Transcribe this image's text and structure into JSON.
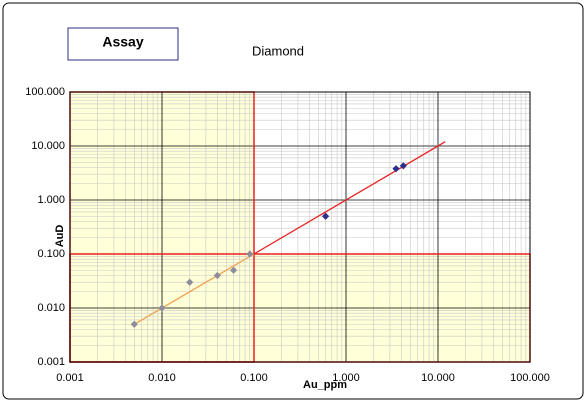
{
  "chart_data": {
    "type": "scatter",
    "label_box": "Assay",
    "title": "Diamond",
    "x_label": "Au_ppm",
    "y_label": "AuD",
    "log_x": true,
    "log_y": true,
    "grid": true,
    "minor_grid": true,
    "xlim": [
      0.001,
      100
    ],
    "ylim": [
      0.001,
      100
    ],
    "xticks": [
      {
        "value": 0.001,
        "label": "0.001"
      },
      {
        "value": 0.01,
        "label": "0.010"
      },
      {
        "value": 0.1,
        "label": "0.100"
      },
      {
        "value": 1,
        "label": "1.000"
      },
      {
        "value": 10,
        "label": "10.000"
      },
      {
        "value": 100,
        "label": "100.000"
      }
    ],
    "yticks": [
      {
        "value": 0.001,
        "label": "0.001"
      },
      {
        "value": 0.01,
        "label": "0.010"
      },
      {
        "value": 0.1,
        "label": "0.100"
      },
      {
        "value": 1,
        "label": "1.000"
      },
      {
        "value": 10,
        "label": "10.000"
      },
      {
        "value": 100,
        "label": "100.000"
      }
    ],
    "x_threshold": 0.1,
    "y_threshold": 0.1,
    "series": [
      {
        "color": "#8c8c9c",
        "x": [
          0.005,
          0.01,
          0.02,
          0.04,
          0.06,
          0.09
        ],
        "values": [
          0.005,
          0.01,
          0.03,
          0.04,
          0.05,
          0.1
        ]
      },
      {
        "color": "#2e2e8c",
        "x": [
          0.6,
          3.5,
          4.2
        ],
        "values": [
          0.5,
          3.8,
          4.3
        ]
      },
      {
        "color": "#f0a050",
        "line": true,
        "x": [
          0.005,
          0.1
        ],
        "values": [
          0.005,
          0.1
        ]
      },
      {
        "color": "#e82020",
        "line": true,
        "x": [
          0.1,
          12
        ],
        "values": [
          0.1,
          12
        ]
      }
    ]
  }
}
